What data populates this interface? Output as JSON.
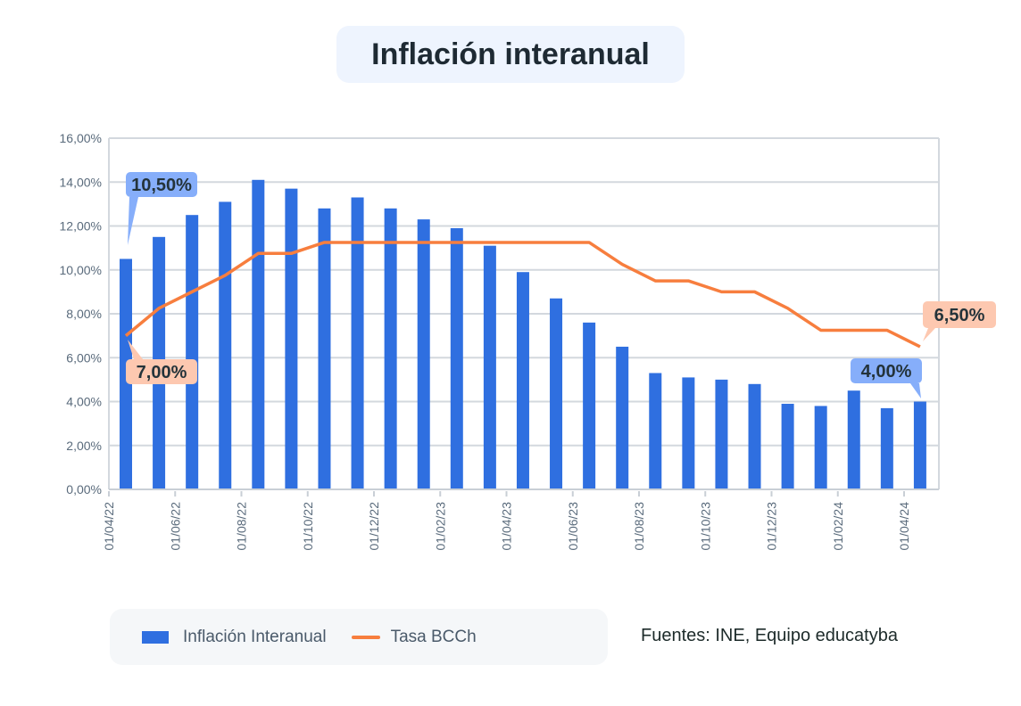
{
  "title": "Inflación interanual",
  "source": "Fuentes: INE, Equipo educatyba",
  "legend": [
    {
      "label": "Inflación Interanual",
      "color": "#2f6fe0"
    },
    {
      "label": "Tasa BCCh",
      "color": "#f77e3e"
    }
  ],
  "chart_data": {
    "type": "bar+line",
    "title": "Inflación interanual",
    "y_ticks": [
      "0,00%",
      "2,00%",
      "4,00%",
      "6,00%",
      "8,00%",
      "10,00%",
      "12,00%",
      "14,00%",
      "16,00%"
    ],
    "ylim": [
      0,
      16
    ],
    "x_ticks": [
      "01/04/22",
      "01/06/22",
      "01/08/22",
      "01/10/22",
      "01/12/22",
      "01/02/23",
      "01/04/23",
      "01/06/23",
      "01/08/23",
      "01/10/23",
      "01/12/23",
      "01/02/24",
      "01/04/24"
    ],
    "grid": true,
    "legend_position": "bottom",
    "series": [
      {
        "name": "Inflación Interanual",
        "type": "bar",
        "color": "#2f6fe0",
        "values": [
          10.5,
          11.5,
          12.5,
          13.1,
          14.1,
          13.7,
          12.8,
          13.3,
          12.8,
          12.3,
          11.9,
          11.1,
          9.9,
          8.7,
          7.6,
          6.5,
          5.3,
          5.1,
          5.0,
          4.8,
          3.9,
          3.8,
          4.5,
          3.7,
          4.0
        ]
      },
      {
        "name": "Tasa BCCh",
        "type": "line",
        "color": "#f77e3e",
        "values": [
          7.0,
          8.25,
          9.0,
          9.75,
          10.75,
          10.75,
          11.25,
          11.25,
          11.25,
          11.25,
          11.25,
          11.25,
          11.25,
          11.25,
          11.25,
          10.25,
          9.5,
          9.5,
          9.0,
          9.0,
          8.25,
          7.25,
          7.25,
          7.25,
          6.5
        ]
      }
    ],
    "annotations": [
      {
        "text": "10,50%",
        "series": "Inflación Interanual",
        "index": 0,
        "color": "#86aefa"
      },
      {
        "text": "7,00%",
        "series": "Tasa BCCh",
        "index": 0,
        "color": "#fdc8b0"
      },
      {
        "text": "6,50%",
        "series": "Tasa BCCh",
        "index": 24,
        "color": "#fdc8b0"
      },
      {
        "text": "4,00%",
        "series": "Inflación Interanual",
        "index": 24,
        "color": "#86aefa"
      }
    ]
  }
}
